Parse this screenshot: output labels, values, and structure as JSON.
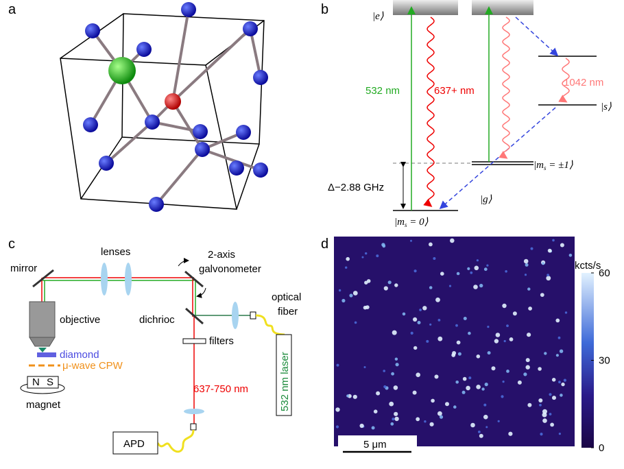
{
  "panel_labels": [
    "a",
    "b",
    "c",
    "d"
  ],
  "energy_levels": {
    "excited": "|e⟩",
    "singlet": "|s⟩",
    "ground": "|g⟩",
    "ground_zero": {
      "pre": "|m",
      "sub": "s",
      "post": " = 0⟩"
    },
    "ground_pm1": {
      "pre": "|m",
      "sub": "s",
      "post": " = ±1⟩"
    },
    "splitting": "Δ−2.88 GHz",
    "excitation": "532 nm",
    "emission": "637+ nm",
    "infrared": "1042 nm"
  },
  "setup": {
    "lenses": "lenses",
    "mirror": "mirror",
    "galvo_line1": "2-axis",
    "galvo_line2": "galvonometer",
    "objective": "objective",
    "dichroic": "dichrioc",
    "fiber_line1": "optical",
    "fiber_line2": "fiber",
    "filters": "filters",
    "diamond": "diamond",
    "cpw": "μ-wave CPW",
    "magnet_n": "N",
    "magnet_s": "S",
    "magnet": "magnet",
    "collection": "637-750 nm",
    "laser": "532 nm laser",
    "detector": "APD"
  },
  "image": {
    "scale_bar": "5 μm",
    "colorbar": {
      "label": "kcts/s",
      "lim": [
        0,
        60
      ],
      "ticks": [
        0,
        30,
        60
      ]
    }
  }
}
